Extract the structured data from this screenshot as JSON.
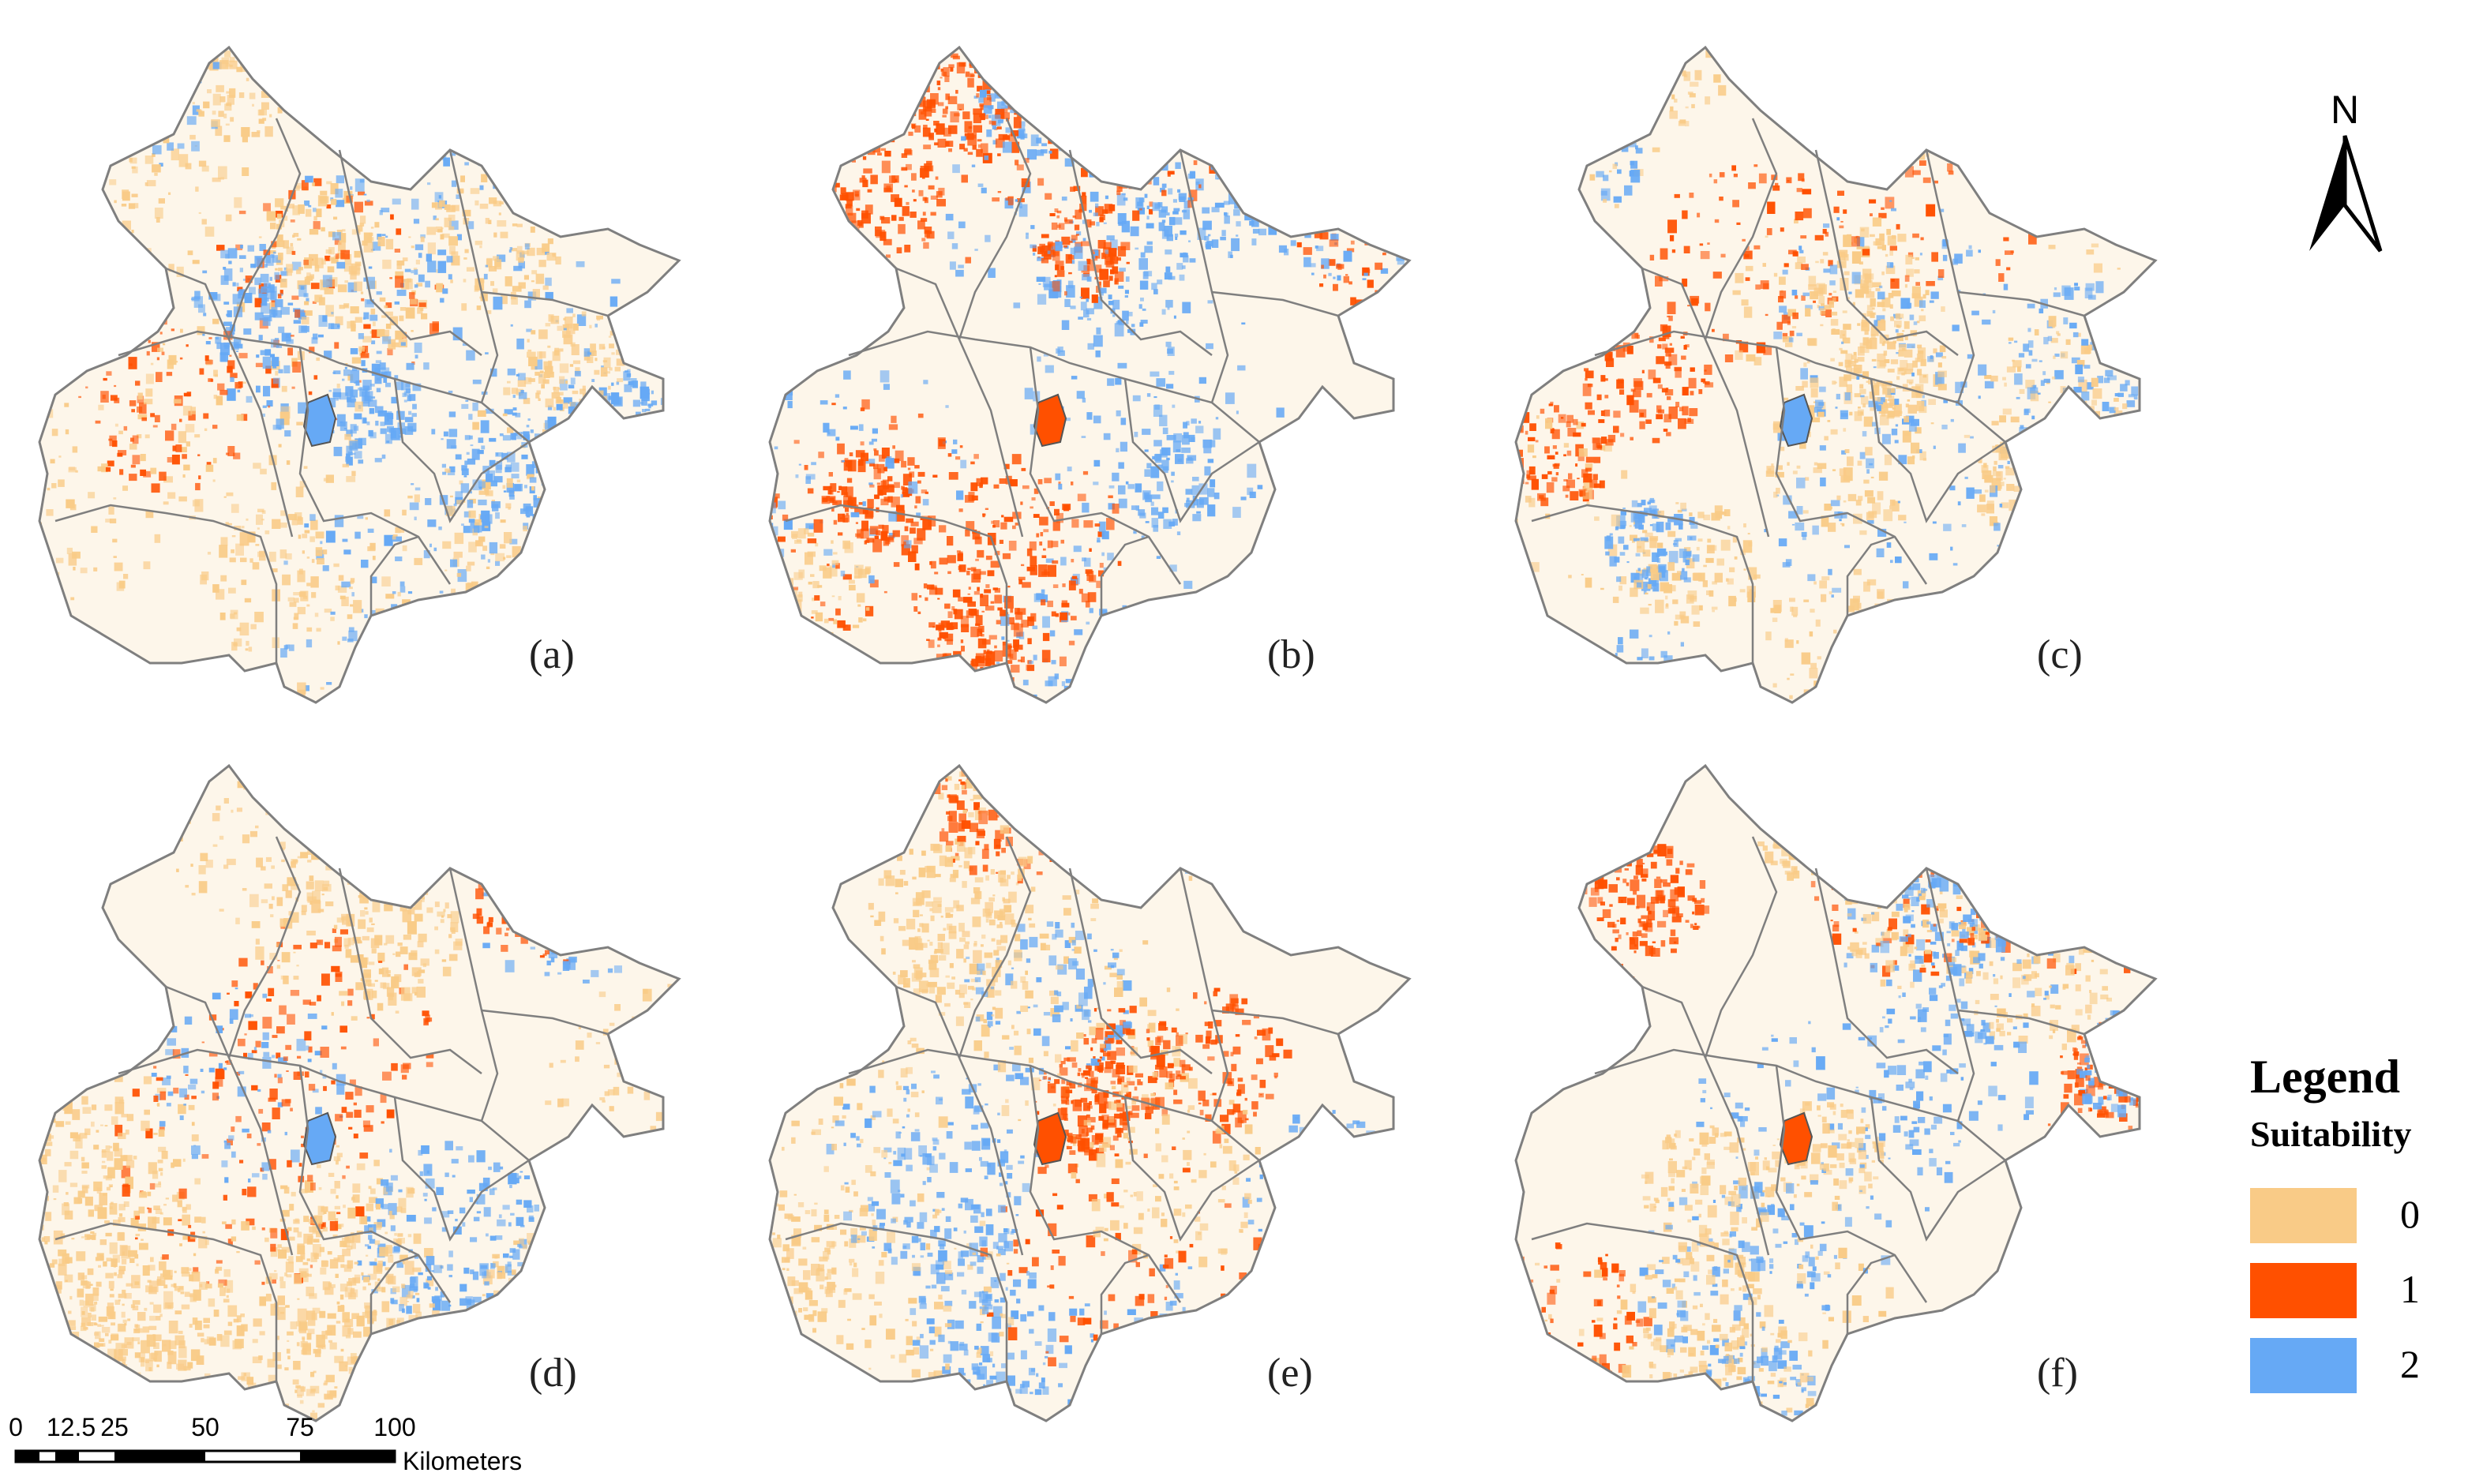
{
  "panels": [
    {
      "label": "(a)",
      "mix": [
        0.4,
        0.22,
        0.38
      ]
    },
    {
      "label": "(b)",
      "mix": [
        0.25,
        0.3,
        0.45
      ]
    },
    {
      "label": "(c)",
      "mix": [
        0.42,
        0.33,
        0.25
      ]
    },
    {
      "label": "(d)",
      "mix": [
        0.72,
        0.1,
        0.18
      ]
    },
    {
      "label": "(e)",
      "mix": [
        0.38,
        0.27,
        0.35
      ]
    },
    {
      "label": "(f)",
      "mix": [
        0.45,
        0.33,
        0.22
      ]
    }
  ],
  "north_arrow": {
    "letter": "N"
  },
  "legend": {
    "title": "Legend",
    "subtitle": "Suitability",
    "items": [
      {
        "value": "0",
        "color": "#F9CB87"
      },
      {
        "value": "1",
        "color": "#FF5000"
      },
      {
        "value": "2",
        "color": "#66A9F5"
      }
    ]
  },
  "scale_bar": {
    "ticks": [
      "0",
      "12.5",
      "25",
      "50",
      "75",
      "100"
    ],
    "unit": "Kilometers"
  },
  "colors": {
    "boundary": "#7f7f7f",
    "background": "#ffffff"
  }
}
